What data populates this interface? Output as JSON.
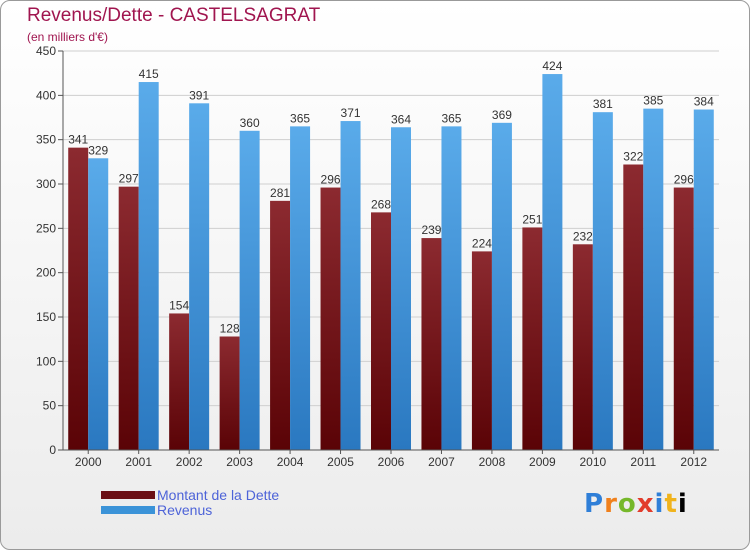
{
  "chart_data": {
    "type": "bar",
    "title": "Revenus/Dette - CASTELSAGRAT",
    "subtitle": "(en milliers d'€)",
    "categories": [
      "2000",
      "2001",
      "2002",
      "2003",
      "2004",
      "2005",
      "2006",
      "2007",
      "2008",
      "2009",
      "2010",
      "2011",
      "2012"
    ],
    "series": [
      {
        "name": "Montant de la Dette",
        "color": "#6b0f14",
        "values": [
          341,
          297,
          154,
          128,
          281,
          296,
          268,
          239,
          224,
          251,
          232,
          322,
          296
        ]
      },
      {
        "name": "Revenus",
        "color": "#3b93d8",
        "values": [
          329,
          415,
          391,
          360,
          365,
          371,
          364,
          365,
          369,
          424,
          381,
          385,
          384
        ]
      }
    ],
    "ylim": [
      0,
      450
    ],
    "yticks": [
      0,
      50,
      100,
      150,
      200,
      250,
      300,
      350,
      400,
      450
    ],
    "grid": true,
    "legend_position": "bottom-left"
  },
  "logo": {
    "letters": [
      "P",
      "r",
      "o",
      "x",
      "i",
      "t",
      "i"
    ]
  }
}
